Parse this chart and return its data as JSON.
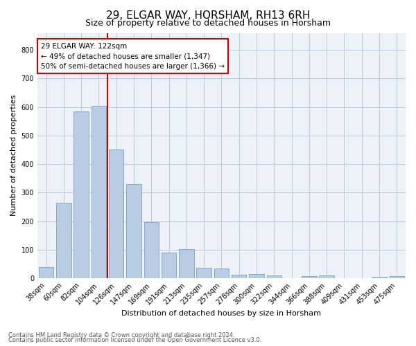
{
  "title": "29, ELGAR WAY, HORSHAM, RH13 6RH",
  "subtitle": "Size of property relative to detached houses in Horsham",
  "xlabel": "Distribution of detached houses by size in Horsham",
  "ylabel": "Number of detached properties",
  "footnote1": "Contains HM Land Registry data © Crown copyright and database right 2024.",
  "footnote2": "Contains public sector information licensed under the Open Government Licence v3.0.",
  "categories": [
    "38sqm",
    "60sqm",
    "82sqm",
    "104sqm",
    "126sqm",
    "147sqm",
    "169sqm",
    "191sqm",
    "213sqm",
    "235sqm",
    "257sqm",
    "278sqm",
    "300sqm",
    "322sqm",
    "344sqm",
    "366sqm",
    "388sqm",
    "409sqm",
    "431sqm",
    "453sqm",
    "475sqm"
  ],
  "values": [
    38,
    265,
    585,
    603,
    452,
    330,
    197,
    90,
    103,
    37,
    33,
    13,
    14,
    10,
    0,
    7,
    10,
    0,
    0,
    5,
    7
  ],
  "bar_color": "#b8cce4",
  "bar_edge_color": "#7aa0c4",
  "vline_bin_index": 4,
  "vline_color": "#cc0000",
  "annotation_line1": "29 ELGAR WAY: 122sqm",
  "annotation_line2": "← 49% of detached houses are smaller (1,347)",
  "annotation_line3": "50% of semi-detached houses are larger (1,366) →",
  "annotation_box_color": "#cc0000",
  "ylim": [
    0,
    860
  ],
  "yticks": [
    0,
    100,
    200,
    300,
    400,
    500,
    600,
    700,
    800
  ],
  "grid_color": "#c0c8d8",
  "bg_color": "#eef2f8",
  "title_fontsize": 11,
  "subtitle_fontsize": 9,
  "axis_label_fontsize": 8,
  "tick_fontsize": 7,
  "annotation_fontsize": 7.5,
  "footnote_fontsize": 6
}
